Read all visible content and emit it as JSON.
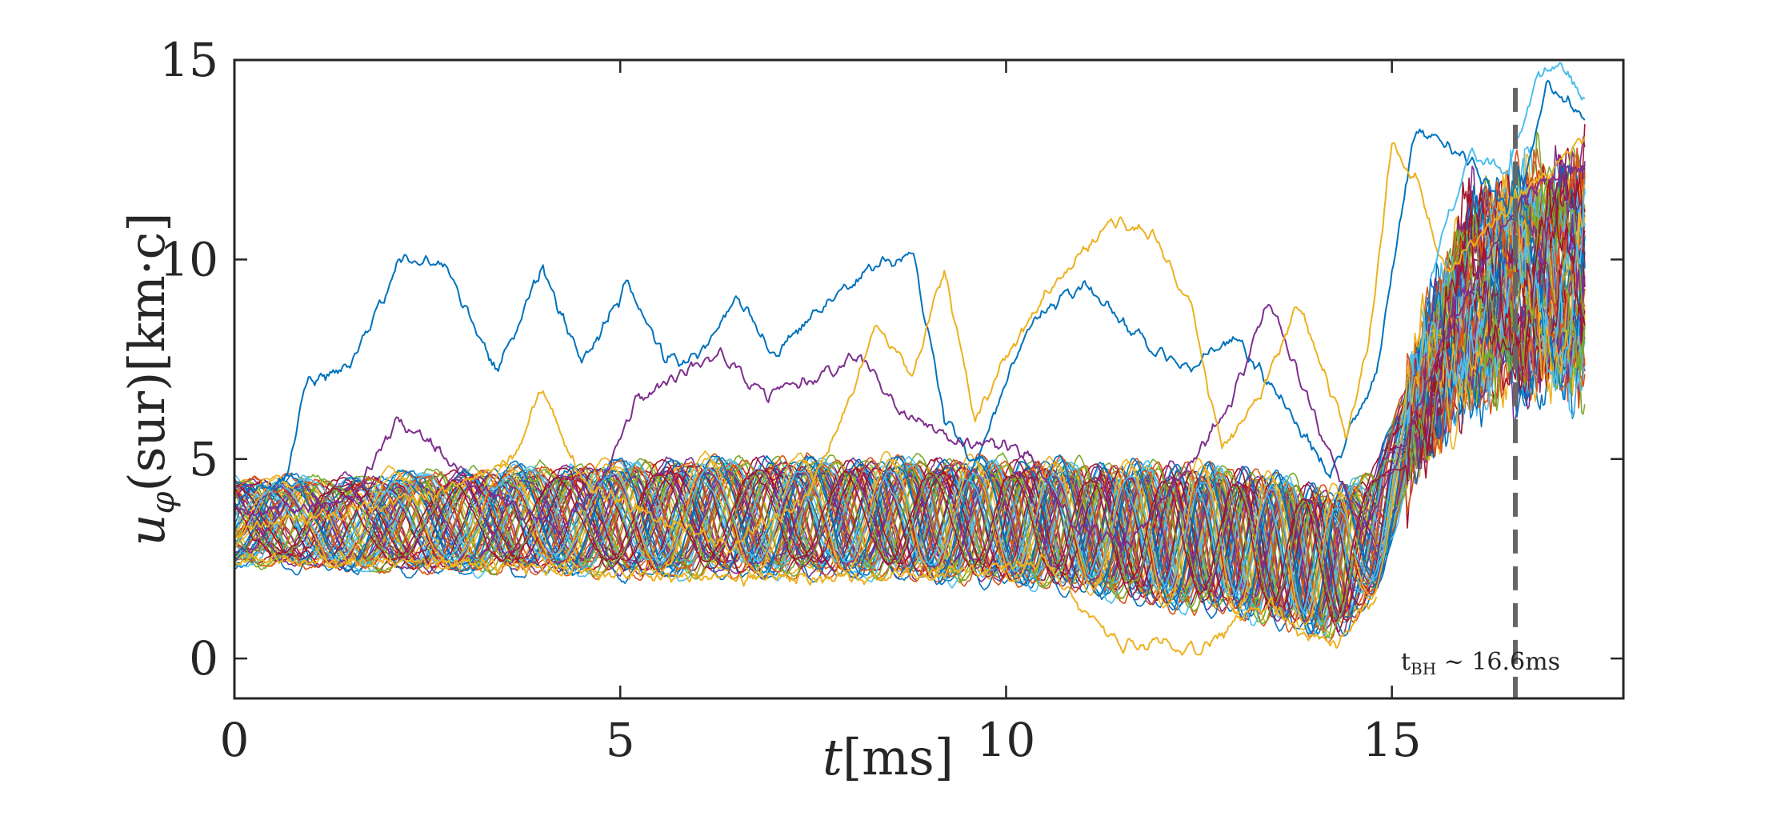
{
  "chart_data": {
    "type": "line",
    "title": "",
    "xlabel": "t[ms]",
    "xlabel_var": "t",
    "xlabel_unit": "[ms]",
    "ylabel": "uφ(sur)[km·c]",
    "ylabel_var": "u",
    "ylabel_sub": "φ",
    "ylabel_rest": "(sur)[km·c]",
    "xlim": [
      0,
      18
    ],
    "ylim": [
      -1,
      15
    ],
    "xticks": [
      0,
      5,
      10,
      15
    ],
    "yticks": [
      0,
      5,
      10,
      15
    ],
    "xtick_labels": [
      "0",
      "5",
      "10",
      "15"
    ],
    "ytick_labels": [
      "0",
      "5",
      "10",
      "15"
    ],
    "grid": false,
    "t_end": 17.5,
    "colors": [
      "#0072BD",
      "#D95319",
      "#EDB120",
      "#7E2F8E",
      "#77AC30",
      "#4DBEEE",
      "#A2142F"
    ],
    "bundle": {
      "n_series": 70,
      "description": "oscillating ensemble of surface azimuthal velocities",
      "envelope_t": [
        0,
        1,
        2,
        3,
        4,
        5,
        6,
        7,
        8,
        9,
        10,
        11,
        12,
        13,
        13.8,
        14.3,
        14.8,
        15.3,
        16,
        16.6,
        17.5
      ],
      "envelope_low": [
        2.3,
        2.2,
        2.1,
        2.1,
        2.1,
        2.0,
        2.0,
        2.0,
        2.0,
        1.9,
        1.8,
        1.6,
        1.2,
        1.0,
        0.6,
        0.4,
        1.5,
        5.0,
        6.5,
        6.8,
        7.0
      ],
      "envelope_high": [
        4.6,
        4.6,
        4.7,
        4.8,
        4.9,
        5.0,
        5.1,
        5.1,
        5.1,
        5.1,
        5.1,
        5.0,
        5.0,
        4.9,
        4.6,
        4.3,
        5.0,
        7.5,
        11.5,
        12.0,
        12.5
      ]
    },
    "outliers": [
      {
        "name": "blue outlier",
        "color": "#0072BD",
        "t": [
          0,
          0.7,
          0.9,
          1.5,
          2.2,
          2.7,
          3.4,
          4.0,
          4.5,
          5.1,
          5.6,
          6.0,
          6.5,
          7.0,
          7.7,
          8.3,
          8.8,
          9.2,
          9.6,
          10.3,
          11.0,
          11.7,
          12.3,
          13.0,
          13.6,
          14.2,
          14.8,
          15.3,
          16.0,
          16.6,
          17.0,
          17.5
        ],
        "y": [
          3.9,
          4.6,
          6.8,
          7.4,
          10.1,
          9.9,
          7.2,
          9.8,
          7.4,
          9.4,
          7.4,
          7.5,
          9.1,
          7.6,
          8.9,
          9.9,
          10.1,
          6.0,
          4.9,
          8.3,
          9.4,
          8.1,
          7.3,
          8.0,
          6.4,
          4.6,
          7.2,
          13.3,
          12.5,
          11.0,
          14.3,
          13.6
        ]
      },
      {
        "name": "purple outlier",
        "color": "#7E2F8E",
        "t": [
          0,
          1.5,
          2.1,
          2.6,
          3.2,
          4.2,
          4.8,
          5.2,
          5.9,
          6.3,
          6.9,
          7.5,
          8.1,
          8.6,
          9.0,
          9.4,
          9.8,
          10.3,
          10.9,
          11.6,
          12.1,
          12.9,
          13.4,
          14.0,
          14.6,
          15.0,
          15.6,
          16.2,
          16.8,
          17.5
        ],
        "y": [
          3.6,
          3.9,
          6.0,
          5.3,
          4.2,
          3.2,
          4.6,
          6.4,
          7.3,
          7.6,
          6.6,
          7.0,
          7.6,
          6.2,
          5.8,
          5.4,
          5.5,
          5.1,
          3.3,
          2.9,
          4.1,
          6.3,
          9.0,
          6.1,
          3.2,
          4.6,
          7.6,
          10.0,
          11.8,
          12.3
        ]
      },
      {
        "name": "yellow outlier",
        "color": "#EDB120",
        "t": [
          0,
          2.6,
          3.6,
          4.0,
          4.5,
          5.4,
          6.4,
          7.4,
          8.0,
          8.3,
          8.8,
          9.2,
          9.6,
          10.0,
          10.5,
          11.0,
          11.4,
          11.9,
          12.4,
          12.8,
          13.3,
          13.8,
          14.4,
          14.7,
          15.0,
          15.3,
          15.7,
          16.2,
          16.9,
          17.5
        ],
        "y": [
          3.2,
          4.1,
          5.0,
          6.8,
          4.4,
          3.6,
          2.8,
          4.0,
          6.6,
          8.3,
          7.1,
          9.8,
          6.0,
          7.6,
          9.1,
          10.2,
          10.9,
          10.6,
          8.8,
          5.2,
          6.6,
          8.9,
          5.6,
          7.9,
          12.9,
          12.1,
          9.6,
          10.7,
          12.0,
          13.1
        ]
      },
      {
        "name": "orange low outlier",
        "color": "#EDB120",
        "t": [
          0,
          3,
          6,
          8,
          9.5,
          10.5,
          11.0,
          11.5,
          12.0,
          12.5,
          13.0,
          13.4,
          13.8,
          14.3,
          14.8
        ],
        "y": [
          2.5,
          2.4,
          2.0,
          2.0,
          2.2,
          2.5,
          1.2,
          0.3,
          0.4,
          0.2,
          0.9,
          1.4,
          0.7,
          0.4,
          1.6
        ]
      },
      {
        "name": "cyan high outlier",
        "color": "#4DBEEE",
        "t": [
          15.5,
          16.0,
          16.5,
          16.9,
          17.2,
          17.5
        ],
        "y": [
          9.5,
          12.7,
          12.2,
          14.6,
          14.9,
          14.1
        ]
      }
    ],
    "reference_line": {
      "t": 16.6,
      "style": "dashed",
      "color": "#666666",
      "label": "t",
      "label_sub": "BH",
      "label_rest": " ~ 16.6ms"
    }
  }
}
